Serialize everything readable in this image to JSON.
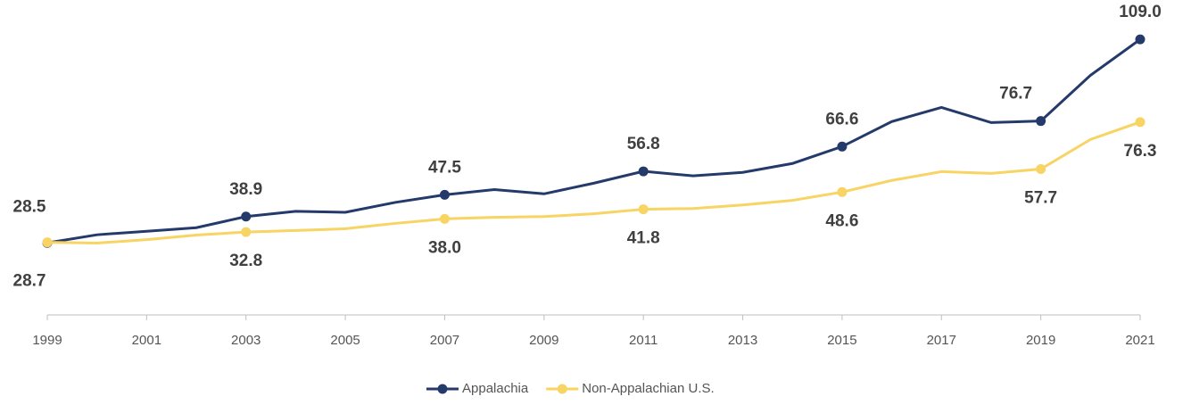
{
  "chart_data": {
    "type": "line",
    "x": [
      1999,
      2000,
      2001,
      2002,
      2003,
      2004,
      2005,
      2006,
      2007,
      2008,
      2009,
      2010,
      2011,
      2012,
      2013,
      2014,
      2015,
      2016,
      2017,
      2018,
      2019,
      2020,
      2021
    ],
    "series": [
      {
        "name": "Appalachia",
        "color": "#243a6b",
        "values": [
          28.5,
          31.7,
          33.1,
          34.5,
          38.9,
          41.0,
          40.6,
          44.5,
          47.5,
          49.6,
          47.9,
          52.1,
          56.8,
          55.0,
          56.4,
          59.9,
          66.6,
          76.5,
          82.1,
          76.1,
          76.7,
          94.8,
          109.0
        ],
        "value_labels": [
          "28.5",
          null,
          null,
          null,
          "38.9",
          null,
          null,
          null,
          "47.5",
          null,
          null,
          null,
          "56.8",
          null,
          null,
          null,
          "66.6",
          null,
          null,
          null,
          "76.7",
          null,
          "109.0"
        ]
      },
      {
        "name": "Non-Appalachian U.S.",
        "color": "#f7d464",
        "values": [
          28.7,
          28.4,
          29.8,
          31.6,
          32.8,
          33.4,
          34.1,
          36.2,
          38.0,
          38.6,
          38.9,
          40.0,
          41.8,
          42.1,
          43.5,
          45.3,
          48.6,
          53.2,
          56.7,
          56.0,
          57.7,
          69.4,
          76.3
        ],
        "value_labels": [
          "28.7",
          null,
          null,
          null,
          "32.8",
          null,
          null,
          null,
          "38.0",
          null,
          null,
          null,
          "41.8",
          null,
          null,
          null,
          "48.6",
          null,
          null,
          null,
          "57.7",
          null,
          "76.3"
        ]
      }
    ],
    "xlim": [
      1999,
      2021
    ],
    "xticks": [
      1999,
      2001,
      2003,
      2005,
      2007,
      2009,
      2011,
      2013,
      2015,
      2017,
      2019,
      2021
    ],
    "ylim": [
      0,
      120
    ],
    "legend": "bottom"
  }
}
